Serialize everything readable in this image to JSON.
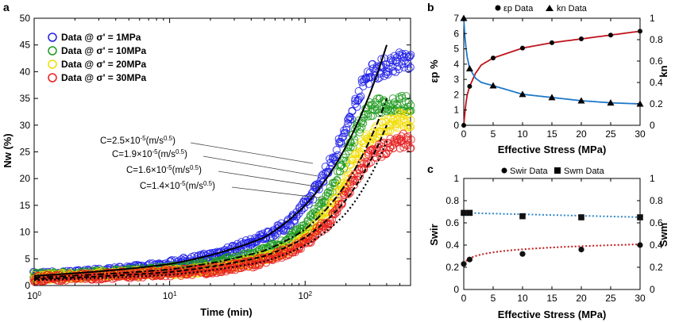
{
  "colors": {
    "blue": "#1f1fe6",
    "green": "#1f9a1f",
    "yellow": "#f2dc00",
    "red": "#e61f1f",
    "curveRed": "#c0141e",
    "curveBlue": "#1f78c8",
    "dotBlue": "#2e86c8",
    "dotRed": "#c01818"
  },
  "chart_data": [
    {
      "panel": "a",
      "type": "scatter",
      "xlabel": "Time (min)",
      "ylabel": "Nw (%)",
      "xscale": "log",
      "xlim": [
        1,
        600
      ],
      "ylim": [
        0,
        50
      ],
      "xticks": [
        "10^0",
        "10^1",
        "10^2"
      ],
      "yticks": [
        0,
        5,
        10,
        15,
        20,
        25,
        30,
        35,
        40,
        45,
        50
      ],
      "legend": {
        "placement": "top-left",
        "entries": [
          "Data @ σ' = 1MPa",
          "Data @ σ' = 10MPa",
          "Data @ σ' = 20MPa",
          "Data @ σ' = 30MPa"
        ]
      },
      "series": [
        {
          "name": "Data @ σ' = 1MPa",
          "color": "blue",
          "x": [
            1,
            2,
            5,
            10,
            20,
            40,
            70,
            100,
            150,
            200,
            250,
            300,
            400,
            500,
            600
          ],
          "y": [
            2,
            2.2,
            3,
            4,
            5.5,
            8,
            11,
            15,
            22,
            29,
            36,
            40,
            41,
            42,
            42
          ]
        },
        {
          "name": "Data @ σ' = 10MPa",
          "color": "green",
          "x": [
            1,
            2,
            5,
            10,
            20,
            40,
            70,
            100,
            150,
            200,
            250,
            300,
            400,
            500,
            600
          ],
          "y": [
            1.8,
            2,
            2.5,
            3,
            4,
            5.5,
            8,
            11,
            17,
            24,
            30,
            33,
            34,
            34,
            34
          ]
        },
        {
          "name": "Data @ σ' = 20MPa",
          "color": "yellow",
          "x": [
            1,
            2,
            5,
            10,
            20,
            40,
            70,
            100,
            150,
            200,
            250,
            300,
            400,
            500,
            600
          ],
          "y": [
            1.5,
            1.8,
            2.2,
            2.5,
            3,
            4.5,
            6.5,
            9,
            14,
            20,
            25,
            28,
            30,
            31,
            31
          ]
        },
        {
          "name": "Data @ σ' = 30MPa",
          "color": "red",
          "x": [
            1,
            2,
            5,
            10,
            20,
            40,
            70,
            100,
            150,
            200,
            250,
            300,
            400,
            500,
            600
          ],
          "y": [
            1.3,
            1.6,
            2,
            2.3,
            2.8,
            4,
            6,
            8,
            12,
            17,
            21,
            24,
            26,
            27,
            27
          ]
        }
      ],
      "fits": [
        {
          "label": "C=2.5×10^-5(m/s^0.5)",
          "style": "solid",
          "x": [
            1,
            10,
            50,
            100,
            200,
            400
          ],
          "y": [
            1.8,
            4,
            9,
            15,
            26,
            45
          ]
        },
        {
          "label": "C=1.9×10^-5(m/s^0.5)",
          "style": "dashdot",
          "x": [
            1,
            10,
            50,
            100,
            200,
            400
          ],
          "y": [
            1.5,
            3,
            6.5,
            10.5,
            19,
            35
          ]
        },
        {
          "label": "C=1.6×10^-5(m/s^0.5)",
          "style": "dashed",
          "x": [
            1,
            10,
            50,
            100,
            200,
            400
          ],
          "y": [
            1.2,
            2.5,
            5.5,
            9,
            16,
            30
          ]
        },
        {
          "label": "C=1.4×10^-5(m/s^0.5)",
          "style": "dotted",
          "x": [
            1,
            10,
            50,
            100,
            200,
            400
          ],
          "y": [
            1,
            2,
            4.5,
            7.5,
            13.5,
            27
          ]
        }
      ],
      "annotations": [
        "C=2.5×10^-5(m/s^0.5)",
        "C=1.9×10^-5(m/s^0.5)",
        "C=1.6×10^-5(m/s^0.5)",
        "C=1.4×10^-5(m/s^0.5)"
      ]
    },
    {
      "panel": "b",
      "type": "scatter",
      "xlabel": "Effective Stress (MPa)",
      "ylabel_left": "εp %",
      "ylabel_right": "kn",
      "xlim": [
        0,
        30
      ],
      "ylim_left": [
        0,
        7
      ],
      "ylim_right": [
        0,
        1
      ],
      "xticks": [
        0,
        5,
        10,
        15,
        20,
        25,
        30
      ],
      "yticks_left": [
        0,
        1,
        2,
        3,
        4,
        5,
        6,
        7
      ],
      "yticks_right": [
        0,
        0.2,
        0.4,
        0.6,
        0.8,
        1
      ],
      "legend": {
        "placement": "top",
        "entries": [
          "εp Data",
          "kn Data"
        ]
      },
      "series": [
        {
          "name": "εp Data",
          "marker": "circle",
          "axis": "left",
          "x": [
            0,
            1,
            5,
            10,
            15,
            20,
            25,
            30
          ],
          "y": [
            0,
            2.55,
            4.4,
            5.05,
            5.4,
            5.65,
            5.9,
            6.15
          ]
        },
        {
          "name": "kn Data",
          "marker": "triangle",
          "axis": "right",
          "x": [
            0,
            1,
            5,
            10,
            15,
            20,
            25,
            30
          ],
          "y": [
            1.0,
            0.53,
            0.37,
            0.29,
            0.26,
            0.23,
            0.21,
            0.2
          ]
        }
      ]
    },
    {
      "panel": "c",
      "type": "scatter",
      "xlabel": "Effective Stress (MPa)",
      "ylabel_left": "Swir",
      "ylabel_right": "Swm",
      "xlim": [
        0,
        30
      ],
      "ylim_left": [
        0,
        1
      ],
      "ylim_right": [
        0,
        1
      ],
      "xticks": [
        0,
        5,
        10,
        15,
        20,
        25,
        30
      ],
      "yticks_left": [
        0,
        0.2,
        0.4,
        0.6,
        0.8,
        1
      ],
      "yticks_right": [
        0,
        0.2,
        0.4,
        0.6,
        0.8,
        1
      ],
      "legend": {
        "placement": "top",
        "entries": [
          "Swir Data",
          "Swm Data"
        ]
      },
      "series": [
        {
          "name": "Swir Data",
          "marker": "circle",
          "axis": "left",
          "x": [
            0,
            1,
            10,
            20,
            30
          ],
          "y": [
            0.23,
            0.27,
            0.32,
            0.36,
            0.4
          ]
        },
        {
          "name": "Swm Data",
          "marker": "square",
          "axis": "right",
          "x": [
            0,
            1,
            10,
            20,
            30
          ],
          "y": [
            0.69,
            0.69,
            0.66,
            0.65,
            0.65
          ]
        }
      ]
    }
  ]
}
